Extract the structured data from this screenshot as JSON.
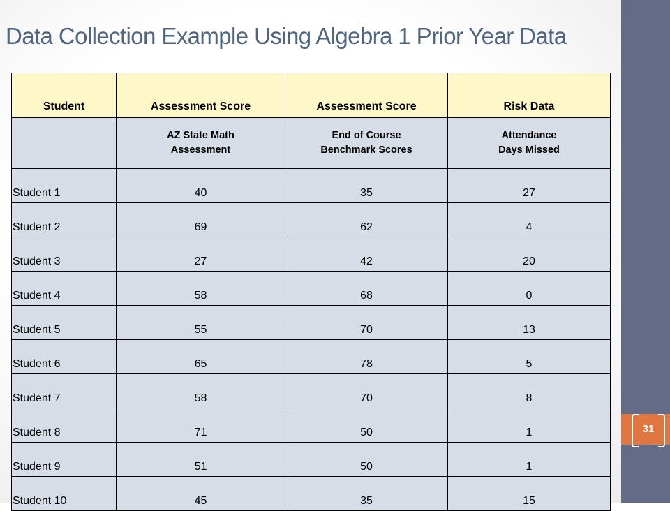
{
  "slide": {
    "title": "Data Collection Example Using Algebra 1 Prior Year Data",
    "page_number": "31"
  },
  "table": {
    "headers": [
      "Student",
      "Assessment Score",
      "Assessment Score",
      "Risk Data"
    ],
    "subheaders": [
      [
        "",
        ""
      ],
      [
        "AZ State Math",
        "Assessment"
      ],
      [
        "End of Course",
        "Benchmark Scores"
      ],
      [
        "Attendance",
        "Days Missed"
      ]
    ],
    "rows": [
      [
        "Student 1",
        "40",
        "35",
        "27"
      ],
      [
        "Student 2",
        "69",
        "62",
        "4"
      ],
      [
        "Student 3",
        "27",
        "42",
        "20"
      ],
      [
        "Student 4",
        "58",
        "68",
        "0"
      ],
      [
        "Student 5",
        "55",
        "70",
        "13"
      ],
      [
        "Student 6",
        "65",
        "78",
        "5"
      ],
      [
        "Student 7",
        "58",
        "70",
        "8"
      ],
      [
        "Student 8",
        "71",
        "50",
        "1"
      ],
      [
        "Student 9",
        "51",
        "50",
        "1"
      ],
      [
        "Student 10",
        "45",
        "35",
        "15"
      ]
    ]
  },
  "colors": {
    "title": "#4f6580",
    "header_fill": "#fef7c7",
    "cell_fill": "#d6dde6",
    "sidebar": "#646b86",
    "page_tab": "#e07640"
  }
}
